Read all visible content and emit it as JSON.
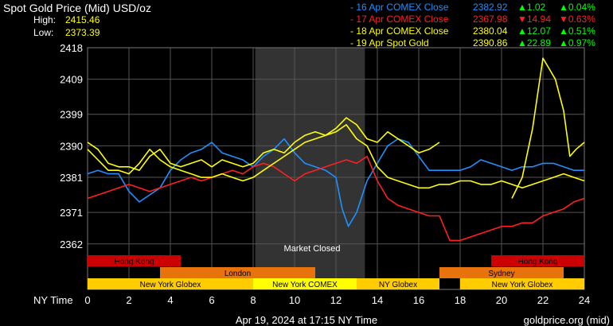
{
  "header": {
    "title": "Spot Gold Price (Mid) USD/oz",
    "high_label": "High:",
    "high_value": "2415.46",
    "low_label": "Low:",
    "low_value": "2373.39"
  },
  "legend": [
    {
      "label": "- 16 Apr COMEX Close",
      "value": "2382.92",
      "change": "▲1.02",
      "pct": "▲0.04%",
      "color": "#1e90ff",
      "change_color": "#00ff00"
    },
    {
      "label": "- 17 Apr COMEX Close",
      "value": "2367.98",
      "change": "▼14.94",
      "pct": "▼0.63%",
      "color": "#ff2020",
      "change_color": "#ff2020"
    },
    {
      "label": "- 18 Apr COMEX Close",
      "value": "2380.04",
      "change": "▲12.07",
      "pct": "▲0.51%",
      "color": "#ffff00",
      "change_color": "#00ff00"
    },
    {
      "label": "- 19 Apr Spot Gold",
      "value": "2390.86",
      "change": "▲22.89",
      "pct": "▲0.97%",
      "color": "#ffff00",
      "change_color": "#00ff00"
    }
  ],
  "footer": {
    "timestamp": "Apr 19, 2024 at 17:15 NY Time",
    "source": "goldprice.org (mid)"
  },
  "chart_data": {
    "type": "line",
    "xlabel": "NY Time",
    "xlim": [
      0,
      24
    ],
    "ylim": [
      2359,
      2418
    ],
    "x_ticks": [
      0,
      2,
      4,
      6,
      8,
      10,
      12,
      14,
      16,
      18,
      20,
      22,
      24
    ],
    "y_ticks": [
      2418,
      2409,
      2399,
      2390,
      2381,
      2371,
      2362
    ],
    "grid": true,
    "shaded_region": {
      "x_start": 8.1,
      "x_end": 13.4,
      "label": "Market Closed"
    },
    "sessions": [
      {
        "label": "Hong Kong",
        "start": 0,
        "end": 4.5,
        "row": 0,
        "color": "#cc0000"
      },
      {
        "label": "Hong Kong",
        "start": 19.5,
        "end": 24,
        "row": 0,
        "color": "#cc0000"
      },
      {
        "label": "London",
        "start": 3.5,
        "end": 11,
        "row": 1,
        "color": "#e8720c"
      },
      {
        "label": "Sydney",
        "start": 17,
        "end": 23,
        "row": 1,
        "color": "#e8720c"
      },
      {
        "label": "New York Globex",
        "start": 0,
        "end": 8,
        "row": 2,
        "color": "#ffcc00"
      },
      {
        "label": "New York COMEX",
        "start": 8,
        "end": 13,
        "row": 2,
        "color": "#ffff00"
      },
      {
        "label": "NY Globex",
        "start": 13,
        "end": 17,
        "row": 2,
        "color": "#ffcc00"
      },
      {
        "label": "New York Globex",
        "start": 18,
        "end": 24,
        "row": 2,
        "color": "#ffcc00"
      }
    ],
    "series": [
      {
        "name": "16 Apr",
        "color": "#1e90ff",
        "x": [
          0,
          0.5,
          1,
          1.5,
          2,
          2.5,
          3,
          3.5,
          4,
          4.5,
          5,
          5.5,
          6,
          6.5,
          7,
          7.5,
          8,
          8.5,
          9,
          9.5,
          10,
          10.5,
          11,
          11.5,
          12,
          12.3,
          12.6,
          13,
          13.5,
          14,
          14.5,
          15,
          15.5,
          16,
          16.5,
          17,
          17.5,
          18,
          18.5,
          19,
          19.5,
          20,
          20.5,
          21,
          21.5,
          22,
          22.5,
          23,
          23.5,
          24
        ],
        "y": [
          2382,
          2383,
          2382,
          2382,
          2377,
          2374,
          2376,
          2378,
          2383,
          2386,
          2388,
          2389,
          2391,
          2388,
          2387,
          2386,
          2384,
          2387,
          2389,
          2392,
          2388,
          2385,
          2384,
          2383,
          2381,
          2372,
          2367,
          2371,
          2380,
          2385,
          2390,
          2392,
          2391,
          2387,
          2383,
          2383,
          2383,
          2383,
          2384,
          2386,
          2385,
          2384,
          2383,
          2384,
          2384,
          2385,
          2385,
          2384,
          2383,
          2383
        ]
      },
      {
        "name": "17 Apr",
        "color": "#ff2020",
        "x": [
          0,
          0.5,
          1,
          1.5,
          2,
          2.5,
          3,
          3.5,
          4,
          4.5,
          5,
          5.5,
          6,
          6.5,
          7,
          7.5,
          8,
          8.5,
          9,
          9.5,
          10,
          10.5,
          11,
          11.5,
          12,
          12.5,
          13,
          13.5,
          14,
          14.5,
          15,
          15.5,
          16,
          16.5,
          17,
          17.5,
          18,
          18.5,
          19,
          19.5,
          20,
          20.5,
          21,
          21.5,
          22,
          22.5,
          23,
          23.5,
          24
        ],
        "y": [
          2375,
          2376,
          2377,
          2378,
          2379,
          2378,
          2377,
          2378,
          2379,
          2380,
          2381,
          2380,
          2381,
          2382,
          2383,
          2382,
          2384,
          2385,
          2384,
          2382,
          2380,
          2382,
          2383,
          2384,
          2385,
          2386,
          2385,
          2387,
          2380,
          2375,
          2373,
          2372,
          2371,
          2370,
          2370,
          2363,
          2363,
          2364,
          2365,
          2366,
          2367,
          2367,
          2368,
          2368,
          2370,
          2371,
          2372,
          2374,
          2375
        ]
      },
      {
        "name": "18 Apr",
        "color": "#ffff00",
        "x": [
          0,
          0.5,
          1,
          1.5,
          2,
          2.5,
          3,
          3.5,
          4,
          4.5,
          5,
          5.5,
          6,
          6.5,
          7,
          7.5,
          8,
          8.5,
          9,
          9.5,
          10,
          10.5,
          11,
          11.5,
          12,
          12.5,
          13,
          13.5,
          14,
          14.5,
          15,
          15.5,
          16,
          16.5,
          17,
          17.5,
          18,
          18.5,
          19,
          19.5,
          20,
          20.5,
          21,
          21.5,
          22,
          22.5,
          23,
          23.5,
          24
        ],
        "y": [
          2389,
          2386,
          2383,
          2383,
          2382,
          2385,
          2389,
          2386,
          2384,
          2383,
          2382,
          2381,
          2381,
          2382,
          2381,
          2380,
          2381,
          2383,
          2385,
          2387,
          2389,
          2391,
          2392,
          2393,
          2394,
          2396,
          2392,
          2390,
          2384,
          2381,
          2380,
          2379,
          2378,
          2378,
          2379,
          2379,
          2380,
          2380,
          2379,
          2379,
          2380,
          2379,
          2378,
          2379,
          2380,
          2381,
          2382,
          2381,
          2380
        ]
      },
      {
        "name": "19 Apr",
        "color": "#ffff00",
        "x": [
          0,
          0.5,
          1,
          1.5,
          2,
          2.5,
          3,
          3.5,
          4,
          4.5,
          5,
          5.5,
          6,
          6.5,
          7,
          7.5,
          8,
          8.5,
          9,
          9.5,
          10,
          10.5,
          11,
          11.5,
          12,
          12.5,
          13,
          13.5,
          14,
          14.5,
          15,
          15.5,
          16,
          16.5,
          17,
          17.5,
          18,
          18.5,
          19,
          19.5,
          20,
          20.5,
          21,
          21.5,
          22,
          22.3,
          22.6,
          23,
          23.3,
          23.6,
          24
        ],
        "y": [
          2391,
          2389,
          2385,
          2384,
          2384,
          2383,
          2387,
          2389,
          2385,
          2384,
          2385,
          2386,
          2384,
          2386,
          2385,
          2384,
          2385,
          2388,
          2389,
          2388,
          2391,
          2393,
          2394,
          2393,
          2395,
          2398,
          2396,
          2392,
          2391,
          2394,
          2392,
          2390,
          2388,
          2389,
          2391,
          null,
          null,
          null,
          null,
          null,
          null,
          2375,
          2381,
          2395,
          2415,
          2412,
          2409,
          2400,
          2387,
          2389,
          2391
        ]
      }
    ]
  }
}
